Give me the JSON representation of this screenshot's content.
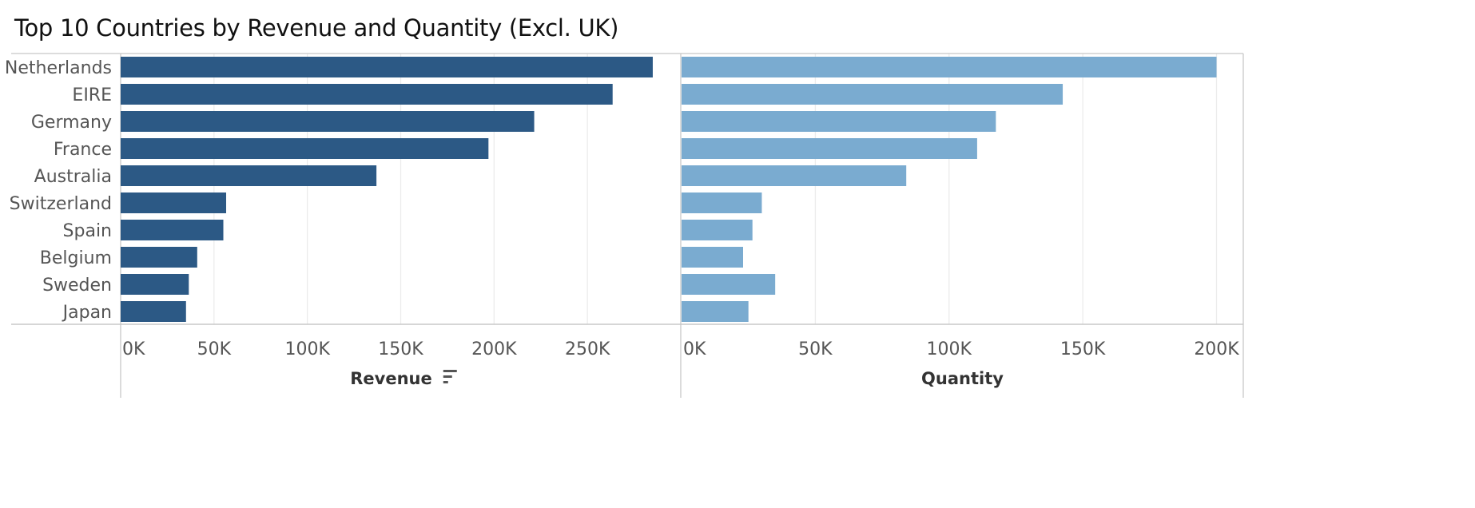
{
  "title": "Top 10 Countries by Revenue and Quantity (Excl. UK)",
  "colors": {
    "revenue": "#2c5985",
    "quantity": "#7aabd0",
    "grid": "#ececec",
    "frame": "#c8c8c8"
  },
  "chart_data": {
    "type": "bar",
    "orientation": "horizontal",
    "categories": [
      "Netherlands",
      "EIRE",
      "Germany",
      "France",
      "Australia",
      "Switzerland",
      "Spain",
      "Belgium",
      "Sweden",
      "Japan"
    ],
    "panels": [
      {
        "measure": "Revenue",
        "xlabel": "Revenue",
        "sort_icon": "sort-descending-icon",
        "values": [
          285000,
          263500,
          221500,
          197000,
          137000,
          56500,
          55000,
          41000,
          36500,
          35000
        ],
        "xlim": [
          0,
          300000
        ],
        "ticks": [
          0,
          50000,
          100000,
          150000,
          200000,
          250000
        ],
        "tick_labels": [
          "0K",
          "50K",
          "100K",
          "150K",
          "200K",
          "250K"
        ],
        "color": "#2c5985"
      },
      {
        "measure": "Quantity",
        "xlabel": "Quantity",
        "values": [
          200000,
          142500,
          117500,
          110500,
          84000,
          30000,
          26500,
          23000,
          35000,
          25000
        ],
        "xlim": [
          0,
          210000
        ],
        "ticks": [
          0,
          50000,
          100000,
          150000,
          200000
        ],
        "tick_labels": [
          "0K",
          "50K",
          "100K",
          "150K",
          "200K"
        ],
        "color": "#7aabd0"
      }
    ],
    "grid": true,
    "legend": "none"
  }
}
